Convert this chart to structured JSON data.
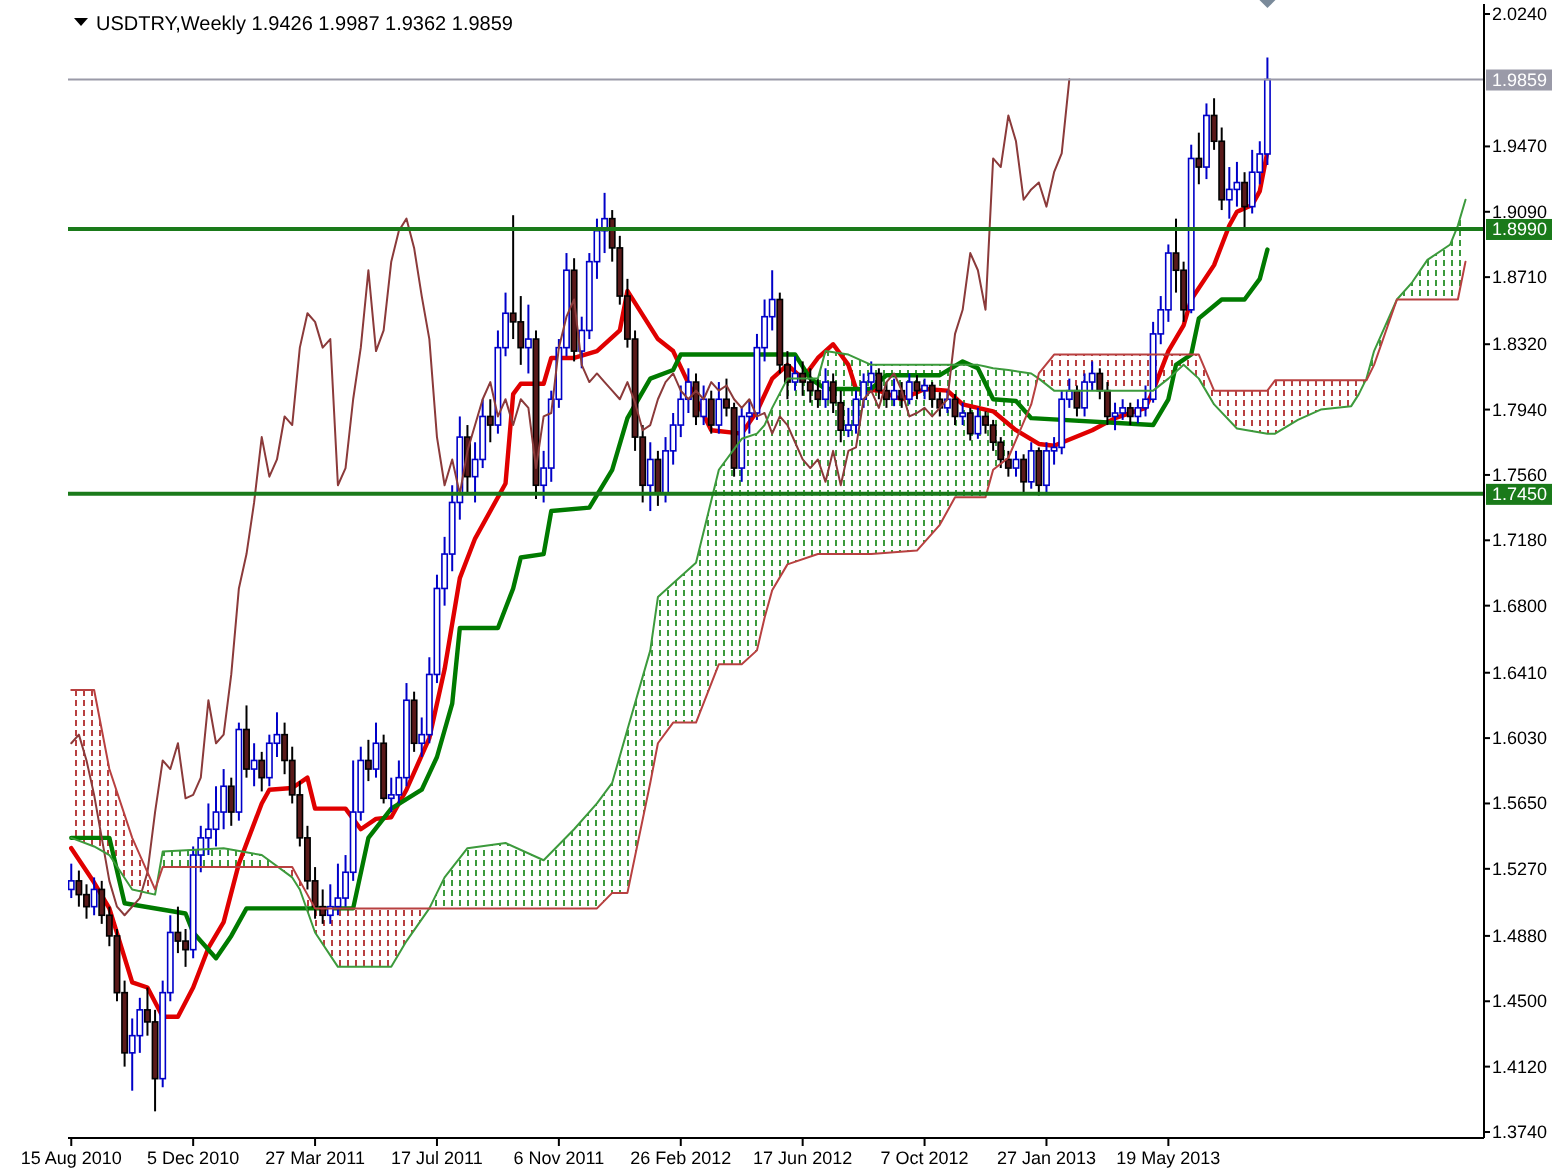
{
  "chart_data": {
    "type": "candlestick",
    "title": "USDTRY,Weekly  1.9426 1.9987 1.9362 1.9859",
    "x": [
      "2010-08-15",
      "2010-08-22",
      "2010-08-29",
      "2010-09-05",
      "2010-09-12",
      "2010-09-19",
      "2010-09-26",
      "2010-10-03",
      "2010-10-10",
      "2010-10-17",
      "2010-10-24",
      "2010-10-31",
      "2010-11-07",
      "2010-11-14",
      "2010-11-21",
      "2010-11-28",
      "2010-12-05",
      "2010-12-12",
      "2010-12-19",
      "2010-12-26",
      "2011-01-02",
      "2011-01-09",
      "2011-01-16",
      "2011-01-23",
      "2011-01-30",
      "2011-02-06",
      "2011-02-13",
      "2011-02-20",
      "2011-02-27",
      "2011-03-06",
      "2011-03-13",
      "2011-03-20",
      "2011-03-27",
      "2011-04-03",
      "2011-04-10",
      "2011-04-17",
      "2011-04-24",
      "2011-05-01",
      "2011-05-08",
      "2011-05-15",
      "2011-05-22",
      "2011-05-29",
      "2011-06-05",
      "2011-06-12",
      "2011-06-19",
      "2011-06-26",
      "2011-07-03",
      "2011-07-10",
      "2011-07-17",
      "2011-07-24",
      "2011-07-31",
      "2011-08-07",
      "2011-08-14",
      "2011-08-21",
      "2011-08-28",
      "2011-09-04",
      "2011-09-11",
      "2011-09-18",
      "2011-09-25",
      "2011-10-02",
      "2011-10-09",
      "2011-10-16",
      "2011-10-23",
      "2011-10-30",
      "2011-11-06",
      "2011-11-13",
      "2011-11-20",
      "2011-11-27",
      "2011-12-04",
      "2011-12-11",
      "2011-12-18",
      "2011-12-25",
      "2012-01-01",
      "2012-01-08",
      "2012-01-15",
      "2012-01-22",
      "2012-01-29",
      "2012-02-05",
      "2012-02-12",
      "2012-02-19",
      "2012-02-26",
      "2012-03-04",
      "2012-03-11",
      "2012-03-18",
      "2012-03-25",
      "2012-04-01",
      "2012-04-08",
      "2012-04-15",
      "2012-04-22",
      "2012-04-29",
      "2012-05-06",
      "2012-05-13",
      "2012-05-20",
      "2012-05-27",
      "2012-06-03",
      "2012-06-10",
      "2012-06-17",
      "2012-06-24",
      "2012-07-01",
      "2012-07-08",
      "2012-07-15",
      "2012-07-22",
      "2012-07-29",
      "2012-08-05",
      "2012-08-12",
      "2012-08-19",
      "2012-08-26",
      "2012-09-02",
      "2012-09-09",
      "2012-09-16",
      "2012-09-23",
      "2012-09-30",
      "2012-10-07",
      "2012-10-14",
      "2012-10-21",
      "2012-10-28",
      "2012-11-04",
      "2012-11-11",
      "2012-11-18",
      "2012-11-25",
      "2012-12-02",
      "2012-12-09",
      "2012-12-16",
      "2012-12-23",
      "2012-12-30",
      "2013-01-06",
      "2013-01-13",
      "2013-01-20",
      "2013-01-27",
      "2013-02-03",
      "2013-02-10",
      "2013-02-17",
      "2013-02-24",
      "2013-03-03",
      "2013-03-10",
      "2013-03-17",
      "2013-03-24",
      "2013-03-31",
      "2013-04-07",
      "2013-04-14",
      "2013-04-21",
      "2013-04-28",
      "2013-05-05",
      "2013-05-12",
      "2013-05-19",
      "2013-05-26",
      "2013-06-02",
      "2013-06-09",
      "2013-06-16",
      "2013-06-23",
      "2013-06-30",
      "2013-07-07",
      "2013-07-14",
      "2013-07-21",
      "2013-07-28",
      "2013-08-04",
      "2013-08-11",
      "2013-08-18"
    ],
    "ohlc": [
      [
        1.515,
        1.53,
        1.51,
        1.52
      ],
      [
        1.52,
        1.526,
        1.505,
        1.512
      ],
      [
        1.512,
        1.518,
        1.498,
        1.505
      ],
      [
        1.505,
        1.522,
        1.5,
        1.515
      ],
      [
        1.515,
        1.52,
        1.495,
        1.5
      ],
      [
        1.5,
        1.505,
        1.482,
        1.488
      ],
      [
        1.488,
        1.492,
        1.45,
        1.455
      ],
      [
        1.455,
        1.462,
        1.412,
        1.42
      ],
      [
        1.42,
        1.44,
        1.398,
        1.43
      ],
      [
        1.43,
        1.452,
        1.42,
        1.445
      ],
      [
        1.445,
        1.458,
        1.43,
        1.438
      ],
      [
        1.438,
        1.445,
        1.386,
        1.405
      ],
      [
        1.405,
        1.462,
        1.4,
        1.455
      ],
      [
        1.455,
        1.5,
        1.45,
        1.49
      ],
      [
        1.49,
        1.505,
        1.478,
        1.485
      ],
      [
        1.485,
        1.492,
        1.47,
        1.48
      ],
      [
        1.48,
        1.54,
        1.475,
        1.535
      ],
      [
        1.535,
        1.552,
        1.525,
        1.545
      ],
      [
        1.545,
        1.565,
        1.535,
        1.55
      ],
      [
        1.55,
        1.575,
        1.54,
        1.56
      ],
      [
        1.56,
        1.585,
        1.55,
        1.575
      ],
      [
        1.575,
        1.58,
        1.552,
        1.56
      ],
      [
        1.56,
        1.612,
        1.555,
        1.608
      ],
      [
        1.608,
        1.622,
        1.58,
        1.585
      ],
      [
        1.585,
        1.6,
        1.575,
        1.59
      ],
      [
        1.59,
        1.595,
        1.572,
        1.58
      ],
      [
        1.58,
        1.605,
        1.575,
        1.6
      ],
      [
        1.6,
        1.618,
        1.592,
        1.605
      ],
      [
        1.605,
        1.612,
        1.582,
        1.59
      ],
      [
        1.59,
        1.598,
        1.565,
        1.57
      ],
      [
        1.57,
        1.578,
        1.54,
        1.545
      ],
      [
        1.545,
        1.552,
        1.515,
        1.52
      ],
      [
        1.52,
        1.528,
        1.498,
        1.505
      ],
      [
        1.505,
        1.515,
        1.495,
        1.5
      ],
      [
        1.5,
        1.518,
        1.495,
        1.505
      ],
      [
        1.505,
        1.53,
        1.5,
        1.51
      ],
      [
        1.51,
        1.535,
        1.505,
        1.525
      ],
      [
        1.525,
        1.59,
        1.52,
        1.56
      ],
      [
        1.56,
        1.598,
        1.555,
        1.59
      ],
      [
        1.59,
        1.602,
        1.578,
        1.585
      ],
      [
        1.585,
        1.612,
        1.58,
        1.6
      ],
      [
        1.6,
        1.605,
        1.565,
        1.568
      ],
      [
        1.568,
        1.58,
        1.56,
        1.57
      ],
      [
        1.57,
        1.59,
        1.565,
        1.58
      ],
      [
        1.58,
        1.635,
        1.575,
        1.625
      ],
      [
        1.625,
        1.63,
        1.595,
        1.6
      ],
      [
        1.6,
        1.615,
        1.592,
        1.605
      ],
      [
        1.605,
        1.65,
        1.6,
        1.64
      ],
      [
        1.64,
        1.698,
        1.635,
        1.69
      ],
      [
        1.69,
        1.72,
        1.68,
        1.71
      ],
      [
        1.71,
        1.75,
        1.7,
        1.74
      ],
      [
        1.74,
        1.79,
        1.73,
        1.778
      ],
      [
        1.778,
        1.785,
        1.745,
        1.755
      ],
      [
        1.755,
        1.775,
        1.74,
        1.765
      ],
      [
        1.765,
        1.8,
        1.76,
        1.79
      ],
      [
        1.79,
        1.8,
        1.775,
        1.785
      ],
      [
        1.785,
        1.84,
        1.78,
        1.83
      ],
      [
        1.83,
        1.862,
        1.825,
        1.85
      ],
      [
        1.85,
        1.907,
        1.835,
        1.845
      ],
      [
        1.845,
        1.86,
        1.82,
        1.83
      ],
      [
        1.83,
        1.855,
        1.815,
        1.835
      ],
      [
        1.835,
        1.84,
        1.742,
        1.75
      ],
      [
        1.75,
        1.77,
        1.74,
        1.76
      ],
      [
        1.76,
        1.805,
        1.752,
        1.8
      ],
      [
        1.8,
        1.835,
        1.795,
        1.83
      ],
      [
        1.83,
        1.885,
        1.825,
        1.875
      ],
      [
        1.875,
        1.882,
        1.822,
        1.828
      ],
      [
        1.828,
        1.848,
        1.818,
        1.84
      ],
      [
        1.84,
        1.885,
        1.835,
        1.88
      ],
      [
        1.88,
        1.905,
        1.87,
        1.898
      ],
      [
        1.898,
        1.92,
        1.885,
        1.905
      ],
      [
        1.905,
        1.91,
        1.88,
        1.888
      ],
      [
        1.888,
        1.895,
        1.855,
        1.86
      ],
      [
        1.86,
        1.87,
        1.83,
        1.835
      ],
      [
        1.835,
        1.84,
        1.77,
        1.778
      ],
      [
        1.778,
        1.785,
        1.74,
        1.75
      ],
      [
        1.75,
        1.775,
        1.735,
        1.765
      ],
      [
        1.765,
        1.77,
        1.738,
        1.745
      ],
      [
        1.745,
        1.778,
        1.74,
        1.77
      ],
      [
        1.77,
        1.792,
        1.762,
        1.785
      ],
      [
        1.785,
        1.808,
        1.778,
        1.8
      ],
      [
        1.8,
        1.818,
        1.792,
        1.81
      ],
      [
        1.81,
        1.815,
        1.785,
        1.79
      ],
      [
        1.79,
        1.808,
        1.785,
        1.8
      ],
      [
        1.8,
        1.805,
        1.78,
        1.785
      ],
      [
        1.785,
        1.81,
        1.78,
        1.8
      ],
      [
        1.8,
        1.812,
        1.79,
        1.795
      ],
      [
        1.795,
        1.798,
        1.755,
        1.76
      ],
      [
        1.76,
        1.795,
        1.752,
        1.79
      ],
      [
        1.79,
        1.8,
        1.78,
        1.792
      ],
      [
        1.792,
        1.838,
        1.788,
        1.83
      ],
      [
        1.83,
        1.858,
        1.822,
        1.848
      ],
      [
        1.848,
        1.875,
        1.84,
        1.858
      ],
      [
        1.858,
        1.862,
        1.815,
        1.82
      ],
      [
        1.82,
        1.828,
        1.8,
        1.81
      ],
      [
        1.81,
        1.825,
        1.805,
        1.815
      ],
      [
        1.815,
        1.822,
        1.802,
        1.81
      ],
      [
        1.81,
        1.818,
        1.798,
        1.805
      ],
      [
        1.805,
        1.812,
        1.795,
        1.8
      ],
      [
        1.8,
        1.818,
        1.795,
        1.81
      ],
      [
        1.81,
        1.815,
        1.792,
        1.798
      ],
      [
        1.798,
        1.805,
        1.775,
        1.782
      ],
      [
        1.782,
        1.795,
        1.778,
        1.785
      ],
      [
        1.785,
        1.805,
        1.78,
        1.8
      ],
      [
        1.8,
        1.815,
        1.795,
        1.81
      ],
      [
        1.81,
        1.822,
        1.805,
        1.815
      ],
      [
        1.815,
        1.818,
        1.8,
        1.805
      ],
      [
        1.805,
        1.81,
        1.795,
        1.8
      ],
      [
        1.8,
        1.812,
        1.796,
        1.805
      ],
      [
        1.805,
        1.81,
        1.795,
        1.8
      ],
      [
        1.8,
        1.815,
        1.797,
        1.81
      ],
      [
        1.81,
        1.814,
        1.8,
        1.805
      ],
      [
        1.805,
        1.812,
        1.8,
        1.808
      ],
      [
        1.808,
        1.81,
        1.795,
        1.8
      ],
      [
        1.8,
        1.804,
        1.79,
        1.795
      ],
      [
        1.795,
        1.805,
        1.792,
        1.8
      ],
      [
        1.8,
        1.803,
        1.785,
        1.79
      ],
      [
        1.79,
        1.798,
        1.785,
        1.792
      ],
      [
        1.792,
        1.795,
        1.776,
        1.78
      ],
      [
        1.78,
        1.795,
        1.777,
        1.79
      ],
      [
        1.79,
        1.793,
        1.78,
        1.785
      ],
      [
        1.785,
        1.788,
        1.77,
        1.775
      ],
      [
        1.775,
        1.778,
        1.76,
        1.765
      ],
      [
        1.765,
        1.77,
        1.755,
        1.76
      ],
      [
        1.76,
        1.77,
        1.755,
        1.765
      ],
      [
        1.765,
        1.768,
        1.745,
        1.752
      ],
      [
        1.752,
        1.775,
        1.748,
        1.77
      ],
      [
        1.77,
        1.772,
        1.744,
        1.75
      ],
      [
        1.75,
        1.775,
        1.746,
        1.77
      ],
      [
        1.77,
        1.778,
        1.762,
        1.772
      ],
      [
        1.772,
        1.805,
        1.768,
        1.8
      ],
      [
        1.8,
        1.812,
        1.795,
        1.805
      ],
      [
        1.805,
        1.808,
        1.79,
        1.795
      ],
      [
        1.795,
        1.815,
        1.79,
        1.81
      ],
      [
        1.81,
        1.822,
        1.805,
        1.815
      ],
      [
        1.815,
        1.818,
        1.8,
        1.805
      ],
      [
        1.805,
        1.81,
        1.785,
        1.79
      ],
      [
        1.79,
        1.798,
        1.782,
        1.792
      ],
      [
        1.792,
        1.8,
        1.788,
        1.795
      ],
      [
        1.795,
        1.798,
        1.785,
        1.79
      ],
      [
        1.79,
        1.8,
        1.786,
        1.795
      ],
      [
        1.795,
        1.808,
        1.79,
        1.8
      ],
      [
        1.8,
        1.845,
        1.798,
        1.838
      ],
      [
        1.838,
        1.86,
        1.832,
        1.852
      ],
      [
        1.852,
        1.89,
        1.845,
        1.885
      ],
      [
        1.885,
        1.905,
        1.862,
        1.875
      ],
      [
        1.875,
        1.88,
        1.845,
        1.852
      ],
      [
        1.852,
        1.948,
        1.85,
        1.94
      ],
      [
        1.94,
        1.955,
        1.925,
        1.935
      ],
      [
        1.935,
        1.972,
        1.928,
        1.965
      ],
      [
        1.965,
        1.975,
        1.945,
        1.95
      ],
      [
        1.95,
        1.958,
        1.91,
        1.916
      ],
      [
        1.916,
        1.935,
        1.905,
        1.922
      ],
      [
        1.922,
        1.938,
        1.912,
        1.926
      ],
      [
        1.926,
        1.932,
        1.9,
        1.912
      ],
      [
        1.912,
        1.945,
        1.908,
        1.932
      ],
      [
        1.932,
        1.95,
        1.925,
        1.9426
      ],
      [
        1.9426,
        1.9987,
        1.9362,
        1.9859
      ]
    ],
    "series": [
      {
        "type": "line",
        "color": "#e00000",
        "x": [
          "2010-08-15",
          "2010-09-05",
          "2010-09-19",
          "2010-10-10",
          "2010-10-24",
          "2010-11-07",
          "2010-11-21",
          "2010-12-05",
          "2010-12-19",
          "2011-01-02",
          "2011-01-16",
          "2011-02-06",
          "2011-02-13",
          "2011-03-06",
          "2011-03-20",
          "2011-03-27",
          "2011-04-24",
          "2011-05-08",
          "2011-05-22",
          "2011-06-05",
          "2011-06-19",
          "2011-07-10",
          "2011-07-24",
          "2011-08-07",
          "2011-08-21",
          "2011-09-18",
          "2011-09-25",
          "2011-10-02",
          "2011-10-23",
          "2011-10-30",
          "2011-11-20",
          "2011-12-11",
          "2012-01-01",
          "2012-01-08",
          "2012-02-05",
          "2012-02-19",
          "2012-03-11",
          "2012-03-25",
          "2012-04-22",
          "2012-05-06",
          "2012-05-20",
          "2012-06-03",
          "2012-06-17",
          "2012-07-01",
          "2012-07-15",
          "2012-07-29",
          "2012-08-05",
          "2012-08-26",
          "2012-09-16",
          "2012-10-07",
          "2012-10-28",
          "2012-11-11",
          "2012-12-09",
          "2012-12-30",
          "2013-01-20",
          "2013-02-03",
          "2013-03-10",
          "2013-03-31",
          "2013-04-28",
          "2013-05-05",
          "2013-05-19",
          "2013-06-02",
          "2013-06-09",
          "2013-06-30",
          "2013-07-14",
          "2013-07-21",
          "2013-08-04",
          "2013-08-11",
          "2013-08-18"
        ],
        "values": [
          1.539,
          1.519,
          1.504,
          1.461,
          1.458,
          1.441,
          1.441,
          1.458,
          1.481,
          1.496,
          1.53,
          1.565,
          1.573,
          1.574,
          1.58,
          1.562,
          1.562,
          1.55,
          1.556,
          1.557,
          1.573,
          1.603,
          1.643,
          1.696,
          1.719,
          1.751,
          1.803,
          1.809,
          1.809,
          1.824,
          1.824,
          1.828,
          1.84,
          1.863,
          1.835,
          1.828,
          1.8,
          1.782,
          1.78,
          1.793,
          1.812,
          1.82,
          1.812,
          1.824,
          1.832,
          1.82,
          1.806,
          1.805,
          1.8,
          1.806,
          1.805,
          1.797,
          1.793,
          1.782,
          1.774,
          1.773,
          1.782,
          1.789,
          1.795,
          1.805,
          1.828,
          1.843,
          1.858,
          1.878,
          1.901,
          1.909,
          1.913,
          1.921,
          1.944
        ]
      },
      {
        "type": "line",
        "color": "#007a00",
        "x": [
          "2010-08-15",
          "2010-09-19",
          "2010-10-03",
          "2010-11-28",
          "2010-12-05",
          "2010-12-26",
          "2011-01-09",
          "2011-01-23",
          "2011-05-01",
          "2011-05-15",
          "2011-06-05",
          "2011-07-03",
          "2011-07-17",
          "2011-07-31",
          "2011-08-07",
          "2011-09-11",
          "2011-09-25",
          "2011-10-02",
          "2011-10-23",
          "2011-10-30",
          "2011-12-04",
          "2011-12-25",
          "2012-01-08",
          "2012-01-29",
          "2012-02-19",
          "2012-02-26",
          "2012-06-10",
          "2012-06-24",
          "2012-07-08",
          "2012-08-19",
          "2012-09-02",
          "2012-10-21",
          "2012-11-11",
          "2012-11-25",
          "2012-12-09",
          "2012-12-30",
          "2013-01-13",
          "2013-05-05",
          "2013-05-19",
          "2013-05-26",
          "2013-06-09",
          "2013-06-16",
          "2013-07-07",
          "2013-07-28",
          "2013-08-11",
          "2013-08-18"
        ],
        "values": [
          1.545,
          1.545,
          1.507,
          1.501,
          1.49,
          1.475,
          1.488,
          1.504,
          1.504,
          1.545,
          1.562,
          1.573,
          1.592,
          1.623,
          1.667,
          1.667,
          1.69,
          1.708,
          1.71,
          1.735,
          1.737,
          1.759,
          1.789,
          1.812,
          1.817,
          1.826,
          1.826,
          1.812,
          1.806,
          1.806,
          1.814,
          1.814,
          1.822,
          1.818,
          1.8,
          1.799,
          1.789,
          1.785,
          1.8,
          1.82,
          1.826,
          1.847,
          1.858,
          1.858,
          1.87,
          1.887
        ]
      },
      {
        "type": "line",
        "color": "#8b3a3a",
        "values": [
          1.6,
          1.605,
          1.59,
          1.57,
          1.545,
          1.52,
          1.505,
          1.5,
          1.505,
          1.51,
          1.525,
          1.56,
          1.59,
          1.585,
          1.6,
          1.568,
          1.57,
          1.58,
          1.625,
          1.6,
          1.605,
          1.64,
          1.69,
          1.71,
          1.74,
          1.778,
          1.755,
          1.765,
          1.79,
          1.785,
          1.83,
          1.85,
          1.845,
          1.83,
          1.835,
          1.75,
          1.76,
          1.8,
          1.83,
          1.875,
          1.828,
          1.84,
          1.88,
          1.898,
          1.905,
          1.888,
          1.86,
          1.835,
          1.778,
          1.75,
          1.765,
          1.745,
          1.77,
          1.785,
          1.8,
          1.81,
          1.79,
          1.8,
          1.785,
          1.8,
          1.795,
          1.76,
          1.79,
          1.792,
          1.83,
          1.848,
          1.858,
          1.82,
          1.81,
          1.815,
          1.81,
          1.805,
          1.8,
          1.81,
          1.798,
          1.782,
          1.785,
          1.8,
          1.81,
          1.815,
          1.805,
          1.8,
          1.805,
          1.8,
          1.81,
          1.805,
          1.808,
          1.8,
          1.795,
          1.8,
          1.79,
          1.792,
          1.78,
          1.79,
          1.785,
          1.775,
          1.765,
          1.76,
          1.765,
          1.752,
          1.77,
          1.75,
          1.77,
          1.772,
          1.8,
          1.805,
          1.795,
          1.81,
          1.815,
          1.805,
          1.79,
          1.792,
          1.795,
          1.79,
          1.795,
          1.8,
          1.838,
          1.852,
          1.885,
          1.875,
          1.852,
          1.94,
          1.935,
          1.965,
          1.95,
          1.916,
          1.922,
          1.926,
          1.912,
          1.932,
          1.943,
          1.986,
          null,
          null,
          null,
          null,
          null,
          null,
          null,
          null,
          null,
          null,
          null,
          null,
          null,
          null,
          null,
          null,
          null,
          null,
          null,
          null,
          null,
          null,
          null,
          null,
          null,
          null
        ]
      },
      {
        "type": "line",
        "color": "#3c9a3c",
        "lower": [
          1.631,
          1.631,
          1.585,
          1.545,
          1.515,
          1.528,
          1.528,
          1.528,
          1.528,
          1.52,
          1.504,
          1.504,
          1.504,
          1.504,
          1.504,
          1.504,
          1.504,
          1.504,
          1.504,
          1.504,
          1.504,
          1.513,
          1.513,
          1.577,
          1.6,
          1.612,
          1.612,
          1.646,
          1.646,
          1.654,
          1.673,
          1.689,
          1.704,
          1.71,
          1.71,
          1.71,
          1.71,
          1.712,
          1.727,
          1.743,
          1.743,
          1.743,
          1.759,
          1.766,
          1.797,
          1.815,
          1.826,
          1.826,
          1.826,
          1.826,
          1.826,
          1.805,
          1.805,
          1.805,
          1.811,
          1.811,
          1.811,
          1.811,
          1.811,
          1.811,
          1.82,
          1.858,
          1.858,
          1.858,
          1.858,
          1.858,
          1.88
        ],
        "upper": [
          1.545,
          1.54,
          1.535,
          1.515,
          1.512,
          1.537,
          1.539,
          1.535,
          1.522,
          1.515,
          1.49,
          1.47,
          1.47,
          1.485,
          1.504,
          1.522,
          1.539,
          1.542,
          1.532,
          1.55,
          1.565,
          1.577,
          1.608,
          1.654,
          1.685,
          1.693,
          1.705,
          1.759,
          1.777,
          1.78,
          1.785,
          1.795,
          1.812,
          1.812,
          1.828,
          1.826,
          1.82,
          1.82,
          1.82,
          1.82,
          1.82,
          1.819,
          1.818,
          1.817,
          1.815,
          1.812,
          1.805,
          1.805,
          1.812,
          1.82,
          1.812,
          1.797,
          1.783,
          1.78,
          1.78,
          1.788,
          1.794,
          1.796,
          1.803,
          1.812,
          1.828,
          1.858,
          1.868,
          1.881,
          1.89,
          1.901,
          1.916
        ],
        "x": [
          "2010-08-15",
          "2010-09-05",
          "2010-09-19",
          "2010-10-10",
          "2010-10-31",
          "2010-11-07",
          "2011-01-02",
          "2011-02-06",
          "2011-03-06",
          "2011-03-13",
          "2011-03-27",
          "2011-04-17",
          "2011-06-05",
          "2011-06-19",
          "2011-07-10",
          "2011-07-24",
          "2011-08-14",
          "2011-09-18",
          "2011-10-23",
          "2011-11-20",
          "2011-12-11",
          "2011-12-25",
          "2012-01-08",
          "2012-01-29",
          "2012-02-05",
          "2012-02-19",
          "2012-03-11",
          "2012-04-01",
          "2012-04-22",
          "2012-05-06",
          "2012-05-13",
          "2012-05-20",
          "2012-06-03",
          "2012-07-01",
          "2012-07-08",
          "2012-07-29",
          "2012-08-19",
          "2012-09-30",
          "2012-10-21",
          "2012-11-04",
          "2012-11-25",
          "2012-12-02",
          "2012-12-09",
          "2012-12-23",
          "2013-01-13",
          "2013-01-20",
          "2013-02-03",
          "2013-05-05",
          "2013-05-19",
          "2013-06-02",
          "2013-06-16",
          "2013-06-30",
          "2013-07-21",
          "2013-08-18",
          "2013-08-25",
          "2013-09-15",
          "2013-10-06",
          "2013-11-03",
          "2013-11-10",
          "2013-11-17",
          "2013-11-24",
          "2013-12-15",
          "2013-12-29",
          "2014-01-12",
          "2014-02-02",
          "2014-02-09",
          "2014-02-16"
        ],
        "values": [
          1.545,
          1.54,
          1.535,
          1.515,
          1.512,
          1.537,
          1.539,
          1.535,
          1.522,
          1.515,
          1.49,
          1.47,
          1.47,
          1.485,
          1.504,
          1.522,
          1.539,
          1.542,
          1.532,
          1.55,
          1.565,
          1.577,
          1.608,
          1.654,
          1.685,
          1.693,
          1.705,
          1.759,
          1.777,
          1.78,
          1.785,
          1.795,
          1.812,
          1.812,
          1.828,
          1.826,
          1.82,
          1.82,
          1.82,
          1.82,
          1.82,
          1.819,
          1.818,
          1.817,
          1.815,
          1.812,
          1.805,
          1.805,
          1.812,
          1.82,
          1.812,
          1.797,
          1.783,
          1.78,
          1.78,
          1.788,
          1.794,
          1.796,
          1.803,
          1.812,
          1.828,
          1.858,
          1.868,
          1.881,
          1.89,
          1.901,
          1.916
        ]
      },
      {
        "type": "line",
        "color": "#b84040",
        "x": [
          "2010-08-15",
          "2010-09-05",
          "2010-09-19",
          "2010-10-10",
          "2010-10-31",
          "2010-11-07",
          "2011-01-02",
          "2011-02-06",
          "2011-03-06",
          "2011-03-13",
          "2011-03-27",
          "2011-04-17",
          "2011-06-05",
          "2011-06-19",
          "2011-07-10",
          "2011-07-24",
          "2011-08-14",
          "2011-09-18",
          "2011-10-23",
          "2011-11-20",
          "2011-12-11",
          "2011-12-25",
          "2012-01-08",
          "2012-01-29",
          "2012-02-05",
          "2012-02-19",
          "2012-03-11",
          "2012-04-01",
          "2012-04-22",
          "2012-05-06",
          "2012-05-13",
          "2012-05-20",
          "2012-06-03",
          "2012-07-01",
          "2012-07-08",
          "2012-07-29",
          "2012-08-19",
          "2012-09-30",
          "2012-10-21",
          "2012-11-04",
          "2012-11-25",
          "2012-12-02",
          "2012-12-09",
          "2012-12-23",
          "2013-01-13",
          "2013-01-20",
          "2013-02-03",
          "2013-05-05",
          "2013-05-19",
          "2013-06-02",
          "2013-06-16",
          "2013-06-30",
          "2013-07-21",
          "2013-08-18",
          "2013-08-25",
          "2013-09-15",
          "2013-10-06",
          "2013-11-03",
          "2013-11-10",
          "2013-11-17",
          "2013-11-24",
          "2013-12-15",
          "2013-12-29",
          "2014-01-12",
          "2014-02-02",
          "2014-02-09",
          "2014-02-16"
        ],
        "values": [
          1.631,
          1.631,
          1.585,
          1.545,
          1.515,
          1.528,
          1.528,
          1.528,
          1.528,
          1.52,
          1.504,
          1.504,
          1.504,
          1.504,
          1.504,
          1.504,
          1.504,
          1.504,
          1.504,
          1.504,
          1.504,
          1.513,
          1.513,
          1.577,
          1.6,
          1.612,
          1.612,
          1.646,
          1.646,
          1.654,
          1.673,
          1.689,
          1.704,
          1.71,
          1.71,
          1.71,
          1.71,
          1.712,
          1.727,
          1.743,
          1.743,
          1.743,
          1.759,
          1.766,
          1.797,
          1.815,
          1.826,
          1.826,
          1.826,
          1.826,
          1.826,
          1.805,
          1.805,
          1.805,
          1.811,
          1.811,
          1.811,
          1.811,
          1.811,
          1.811,
          1.82,
          1.858,
          1.858,
          1.858,
          1.858,
          1.858,
          1.88
        ]
      }
    ],
    "xlim": [
      "2010-08-12",
      "2014-03-05"
    ],
    "xticks": [
      {
        "value": "2010-08-15",
        "label": "15 Aug 2010"
      },
      {
        "value": "2010-12-05",
        "label": "5 Dec 2010"
      },
      {
        "value": "2011-03-27",
        "label": "27 Mar 2011"
      },
      {
        "value": "2011-07-17",
        "label": "17 Jul 2011"
      },
      {
        "value": "2011-11-06",
        "label": "6 Nov 2011"
      },
      {
        "value": "2012-02-26",
        "label": "26 Feb 2012"
      },
      {
        "value": "2012-06-17",
        "label": "17 Jun 2012"
      },
      {
        "value": "2012-10-07",
        "label": "7 Oct 2012"
      },
      {
        "value": "2013-01-27",
        "label": "27 Jan 2013"
      },
      {
        "value": "2013-05-19",
        "label": "19 May 2013"
      }
    ],
    "ylim": [
      1.3705,
      2.0298
    ],
    "yticks": [
      {
        "value": 2.024,
        "label": "2.0240"
      },
      {
        "value": 1.947,
        "label": "1.9470"
      },
      {
        "value": 1.909,
        "label": "1.9090"
      },
      {
        "value": 1.871,
        "label": "1.8710"
      },
      {
        "value": 1.832,
        "label": "1.8320"
      },
      {
        "value": 1.794,
        "label": "1.7940"
      },
      {
        "value": 1.756,
        "label": "1.7560"
      },
      {
        "value": 1.718,
        "label": "1.7180"
      },
      {
        "value": 1.68,
        "label": "1.6800"
      },
      {
        "value": 1.641,
        "label": "1.6410"
      },
      {
        "value": 1.603,
        "label": "1.6030"
      },
      {
        "value": 1.565,
        "label": "1.5650"
      },
      {
        "value": 1.527,
        "label": "1.5270"
      },
      {
        "value": 1.488,
        "label": "1.4880"
      },
      {
        "value": 1.45,
        "label": "1.4500"
      },
      {
        "value": 1.412,
        "label": "1.4120"
      },
      {
        "value": 1.374,
        "label": "1.3740"
      }
    ],
    "ref_lines": [
      {
        "axis": "y",
        "value": 1.9859,
        "label": "1.9859",
        "color": "#9a9aa8"
      },
      {
        "axis": "y",
        "value": 1.899,
        "label": "1.8990",
        "color": "#1a7a1a"
      },
      {
        "axis": "y",
        "value": 1.745,
        "label": "1.7450",
        "color": "#1a7a1a"
      }
    ]
  }
}
